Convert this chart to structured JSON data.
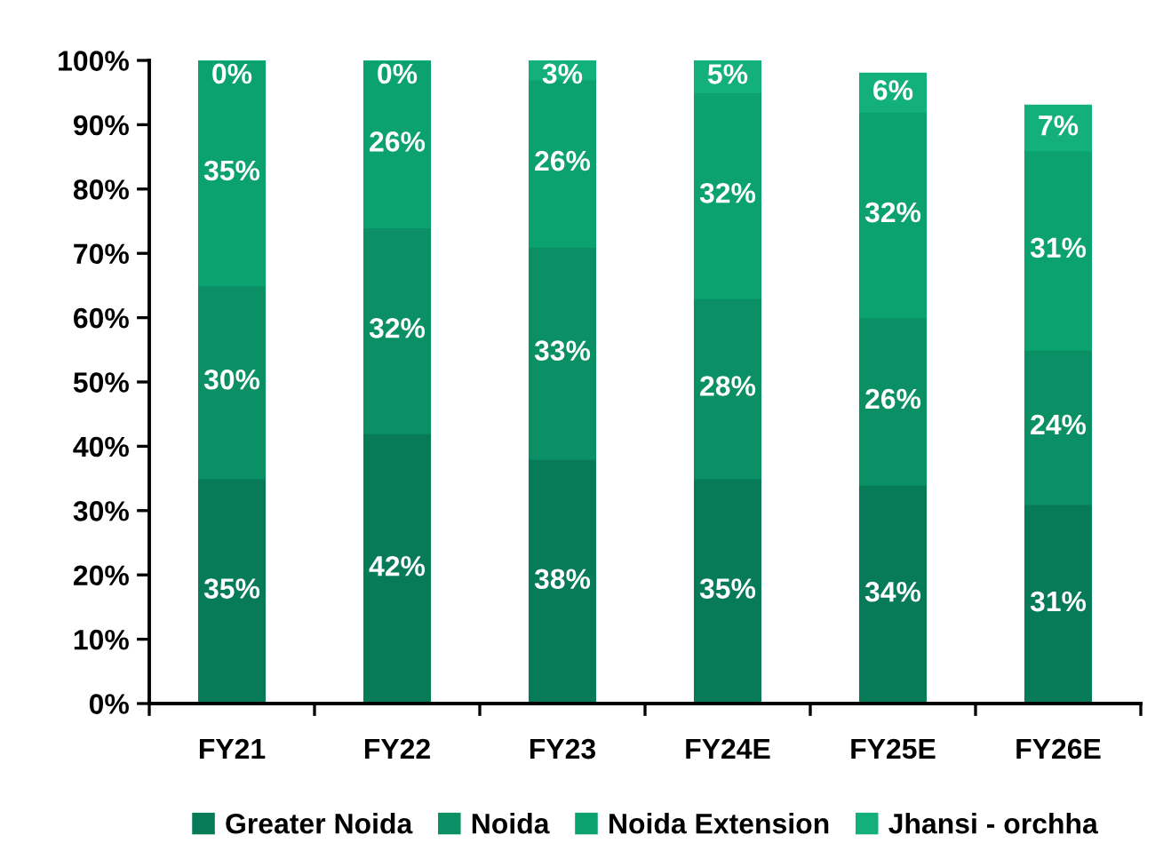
{
  "chart_data": {
    "type": "bar",
    "stacked": true,
    "categories": [
      "FY21",
      "FY22",
      "FY23",
      "FY24E",
      "FY25E",
      "FY26E"
    ],
    "series": [
      {
        "name": "Greater Noida",
        "color": "#077b57",
        "values": [
          35,
          42,
          38,
          35,
          34,
          31
        ],
        "value_labels": [
          "35%",
          "42%",
          "38%",
          "35%",
          "34%",
          "31%"
        ]
      },
      {
        "name": "Noida",
        "color": "#0a9064",
        "values": [
          30,
          32,
          33,
          28,
          26,
          24
        ],
        "value_labels": [
          "30%",
          "32%",
          "33%",
          "28%",
          "26%",
          "24%"
        ]
      },
      {
        "name": "Noida Extension",
        "color": "#0ba270",
        "values": [
          35,
          26,
          26,
          32,
          32,
          31
        ],
        "value_labels": [
          "35%",
          "26%",
          "26%",
          "32%",
          "32%",
          "31%"
        ]
      },
      {
        "name": "Jhansi - orchha",
        "color": "#13b07c",
        "values": [
          0,
          0,
          3,
          5,
          6,
          7
        ],
        "value_labels": [
          "0%",
          "0%",
          "3%",
          "5%",
          "6%",
          "7%"
        ]
      }
    ],
    "ylim": [
      0,
      100
    ],
    "yticks": [
      {
        "value": 0,
        "label": "0%"
      },
      {
        "value": 10,
        "label": "10%"
      },
      {
        "value": 20,
        "label": "20%"
      },
      {
        "value": 30,
        "label": "30%"
      },
      {
        "value": 40,
        "label": "40%"
      },
      {
        "value": 50,
        "label": "50%"
      },
      {
        "value": 60,
        "label": "60%"
      },
      {
        "value": 70,
        "label": "70%"
      },
      {
        "value": 80,
        "label": "80%"
      },
      {
        "value": 90,
        "label": "90%"
      },
      {
        "value": 100,
        "label": "100%"
      }
    ],
    "legend": "bottom"
  }
}
